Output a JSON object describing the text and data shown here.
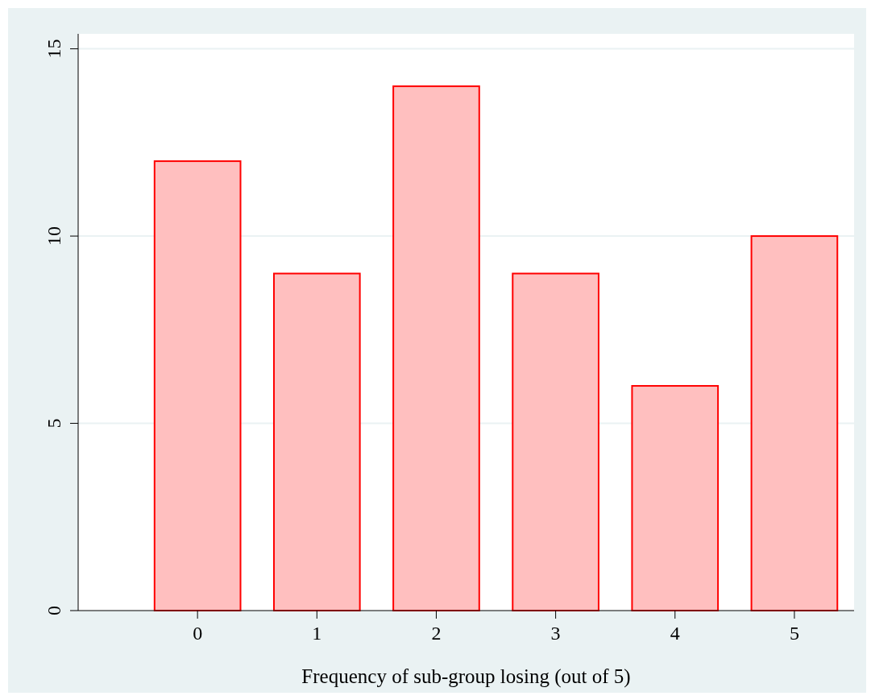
{
  "chart_data": {
    "type": "bar",
    "xlabel": "Frequency of sub-group losing (out of 5)",
    "x": [
      0,
      1,
      2,
      3,
      4,
      5
    ],
    "values": [
      12,
      9,
      14,
      9,
      6,
      10
    ],
    "color": "#ffbfbf",
    "xlim": [
      -1,
      5.5
    ],
    "xticks": [
      0,
      1,
      2,
      3,
      4,
      5
    ],
    "ylim": [
      0,
      15.4
    ],
    "yticks": [
      0,
      5,
      10,
      15
    ],
    "grid": "y"
  }
}
